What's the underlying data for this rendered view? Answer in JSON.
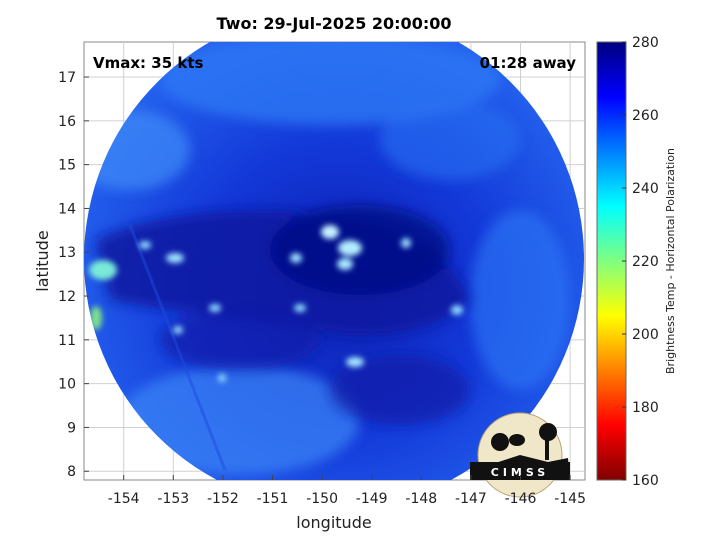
{
  "title": "Two: 29-Jul-2025 20:00:00",
  "vmax_label": "Vmax: 35 kts",
  "time_label": "01:28 away",
  "xlabel": "longitude",
  "ylabel": "latitude",
  "colorbar_label": "Brightness Temp - Horizontal Polarization",
  "logo_text": "CIMSS",
  "x_ticks": [
    "-154",
    "-153",
    "-152",
    "-151",
    "-150",
    "-149",
    "-148",
    "-147",
    "-146",
    "-145"
  ],
  "y_ticks": [
    "8",
    "9",
    "10",
    "11",
    "12",
    "13",
    "14",
    "15",
    "16",
    "17"
  ],
  "colorbar_ticks": [
    "160",
    "180",
    "200",
    "220",
    "240",
    "260",
    "280"
  ],
  "colors": {
    "colormap": [
      "#800000",
      "#ff0000",
      "#ff8000",
      "#ffff00",
      "#80ff80",
      "#00ffff",
      "#0080ff",
      "#0000ff",
      "#000080"
    ],
    "scene_base": "#1a4ff0",
    "cold_core": "#0d1ea8",
    "bright_cells": "#bfefff",
    "grid": "#d0d0d0"
  },
  "map": {
    "type": "microwave brightness temperature swath",
    "x_range": [
      -154.8,
      -144.7
    ],
    "y_range": [
      7.8,
      17.8
    ],
    "colorbar_range": [
      160,
      280
    ]
  }
}
